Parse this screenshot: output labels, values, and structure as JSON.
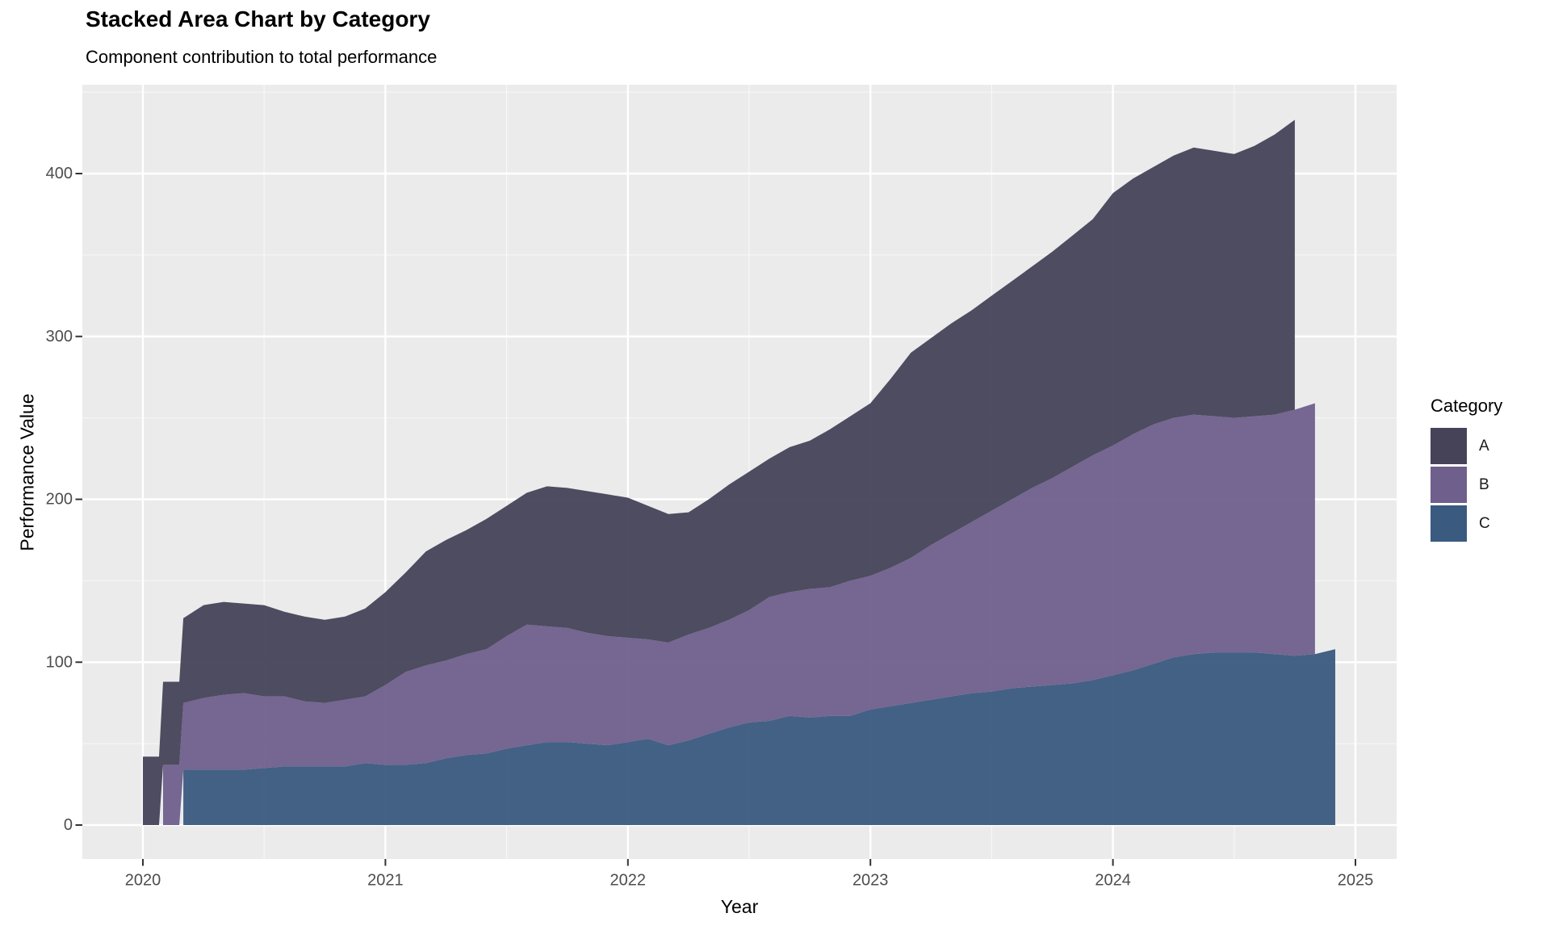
{
  "chart_data": {
    "type": "area",
    "stacked": true,
    "title": "Stacked Area Chart by Category",
    "subtitle": "Component contribution to total performance",
    "xlabel": "Year",
    "ylabel": "Performance Value",
    "grid": "on",
    "panel_background": "#EBEBEB",
    "gridline_color": "#FFFFFF",
    "tick_label_color": "#4D4D4D",
    "x_frequency": "monthly",
    "x_axis": {
      "label": "Year",
      "ticks": [
        2020,
        2021,
        2022,
        2023,
        2024,
        2025
      ],
      "minor_ticks": [
        2020.5,
        2021.5,
        2022.5,
        2023.5,
        2024.5
      ],
      "range": [
        2019.75,
        2025.17
      ]
    },
    "y_axis": {
      "label": "Performance Value",
      "ticks": [
        0,
        100,
        200,
        300,
        400
      ],
      "minor_ticks": [
        50,
        150,
        250,
        350,
        450
      ],
      "range": [
        -21,
        454
      ]
    },
    "legend": {
      "title": "Category",
      "position": "right",
      "entries": [
        {
          "label": "A",
          "color": "#464358"
        },
        {
          "label": "B",
          "color": "#6f5f8d"
        },
        {
          "label": "C",
          "color": "#3a5a80"
        }
      ]
    },
    "series": [
      {
        "name": "A",
        "color": "#464358",
        "start_month": "2020-01",
        "start_index": 0,
        "values": [
          42,
          51,
          52,
          57,
          57,
          55,
          56,
          52,
          52,
          51,
          51,
          54,
          57,
          61,
          70,
          74,
          76,
          80,
          80,
          81,
          86,
          86,
          87,
          87,
          86,
          82,
          79,
          75,
          79,
          83,
          85,
          85,
          89,
          91,
          97,
          101,
          106,
          116,
          126,
          127,
          129,
          130,
          132,
          134,
          136,
          139,
          142,
          145,
          155,
          157,
          158,
          161,
          164,
          163,
          162,
          166,
          172,
          178
        ]
      },
      {
        "name": "B",
        "color": "#6f5f8d",
        "start_month": "2020-02",
        "start_index": 1,
        "values": [
          37,
          41,
          44,
          46,
          47,
          44,
          43,
          40,
          39,
          41,
          41,
          49,
          57,
          60,
          60,
          62,
          64,
          69,
          74,
          71,
          70,
          68,
          67,
          64,
          61,
          63,
          65,
          65,
          66,
          69,
          76,
          76,
          79,
          79,
          83,
          82,
          85,
          89,
          95,
          100,
          105,
          111,
          116,
          122,
          127,
          133,
          138,
          141,
          145,
          147,
          147,
          147,
          145,
          144,
          145,
          147,
          151,
          154
        ]
      },
      {
        "name": "C",
        "color": "#3a5a80",
        "start_month": "2020-03",
        "start_index": 2,
        "values": [
          34,
          34,
          34,
          34,
          35,
          36,
          36,
          36,
          36,
          38,
          37,
          37,
          38,
          41,
          43,
          44,
          47,
          49,
          51,
          51,
          50,
          49,
          51,
          53,
          49,
          52,
          56,
          60,
          63,
          64,
          67,
          66,
          67,
          67,
          71,
          73,
          75,
          77,
          79,
          81,
          82,
          84,
          85,
          86,
          87,
          89,
          92,
          95,
          99,
          103,
          105,
          106,
          106,
          106,
          105,
          104,
          105,
          108
        ]
      }
    ]
  }
}
